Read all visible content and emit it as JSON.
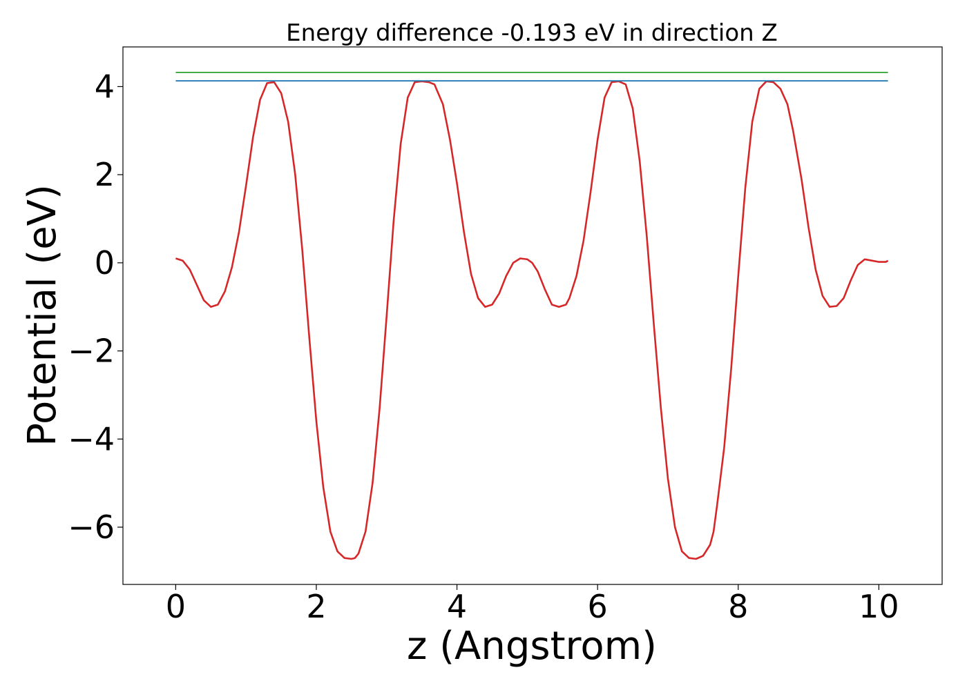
{
  "chart_data": {
    "type": "line",
    "title": "Energy difference -0.193 eV in direction Z",
    "xlabel": "z (Angstrom)",
    "ylabel": "Potential (eV)",
    "xlim": [
      -0.75,
      10.9
    ],
    "ylim": [
      -7.3,
      4.9
    ],
    "x_ticks": [
      0,
      2,
      4,
      6,
      8,
      10
    ],
    "y_ticks": [
      4,
      2,
      0,
      -2,
      -4,
      -6
    ],
    "x_tick_labels": [
      "0",
      "2",
      "4",
      "6",
      "8",
      "10"
    ],
    "y_tick_labels": [
      "4",
      "2",
      "0",
      "−2",
      "−4",
      "−6"
    ],
    "grid": false,
    "series": [
      {
        "color": "#d62728",
        "x": [
          0.0,
          0.1,
          0.2,
          0.3,
          0.4,
          0.5,
          0.6,
          0.7,
          0.8,
          0.9,
          1.0,
          1.1,
          1.2,
          1.3,
          1.4,
          1.5,
          1.6,
          1.7,
          1.8,
          1.9,
          2.0,
          2.1,
          2.2,
          2.3,
          2.4,
          2.5,
          2.55,
          2.6,
          2.7,
          2.8,
          2.9,
          3.0,
          3.1,
          3.2,
          3.3,
          3.4,
          3.5,
          3.6,
          3.68,
          3.8,
          3.9,
          4.0,
          4.1,
          4.2,
          4.3,
          4.4,
          4.5,
          4.6,
          4.7,
          4.8,
          4.9,
          5.0,
          5.07,
          5.15,
          5.25,
          5.35,
          5.45,
          5.55,
          5.6,
          5.7,
          5.8,
          5.9,
          6.0,
          6.1,
          6.2,
          6.3,
          6.4,
          6.5,
          6.6,
          6.7,
          6.8,
          6.9,
          7.0,
          7.1,
          7.2,
          7.3,
          7.4,
          7.5,
          7.6,
          7.65,
          7.7,
          7.8,
          7.9,
          8.0,
          8.1,
          8.2,
          8.3,
          8.4,
          8.5,
          8.6,
          8.7,
          8.78,
          8.9,
          9.0,
          9.1,
          9.2,
          9.3,
          9.4,
          9.5,
          9.6,
          9.7,
          9.8,
          9.9,
          10.0,
          10.1,
          10.13
        ],
        "y": [
          0.1,
          0.05,
          -0.15,
          -0.5,
          -0.85,
          -1.0,
          -0.95,
          -0.65,
          -0.1,
          0.7,
          1.75,
          2.85,
          3.7,
          4.08,
          4.1,
          3.85,
          3.2,
          2.0,
          0.3,
          -1.7,
          -3.6,
          -5.1,
          -6.1,
          -6.55,
          -6.7,
          -6.72,
          -6.7,
          -6.6,
          -6.1,
          -5.0,
          -3.3,
          -1.2,
          0.95,
          2.7,
          3.75,
          4.1,
          4.12,
          4.1,
          4.05,
          3.6,
          2.8,
          1.8,
          0.7,
          -0.25,
          -0.8,
          -1.0,
          -0.95,
          -0.7,
          -0.3,
          0.0,
          0.1,
          0.08,
          0.0,
          -0.2,
          -0.6,
          -0.95,
          -1.0,
          -0.95,
          -0.8,
          -0.3,
          0.5,
          1.6,
          2.8,
          3.75,
          4.1,
          4.12,
          4.05,
          3.5,
          2.3,
          0.6,
          -1.4,
          -3.3,
          -4.9,
          -6.0,
          -6.55,
          -6.7,
          -6.72,
          -6.65,
          -6.4,
          -6.1,
          -5.5,
          -4.2,
          -2.4,
          -0.3,
          1.7,
          3.2,
          3.95,
          4.12,
          4.1,
          3.95,
          3.6,
          3.0,
          1.9,
          0.8,
          -0.15,
          -0.75,
          -1.0,
          -0.98,
          -0.8,
          -0.4,
          -0.05,
          0.08,
          0.05,
          0.02,
          0.02,
          0.05
        ]
      },
      {
        "color": "#1f77b4",
        "x": [
          0.0,
          10.13
        ],
        "y": [
          4.13,
          4.13
        ]
      },
      {
        "color": "#2ca02c",
        "x": [
          0.0,
          10.13
        ],
        "y": [
          4.32,
          4.32
        ]
      }
    ]
  }
}
